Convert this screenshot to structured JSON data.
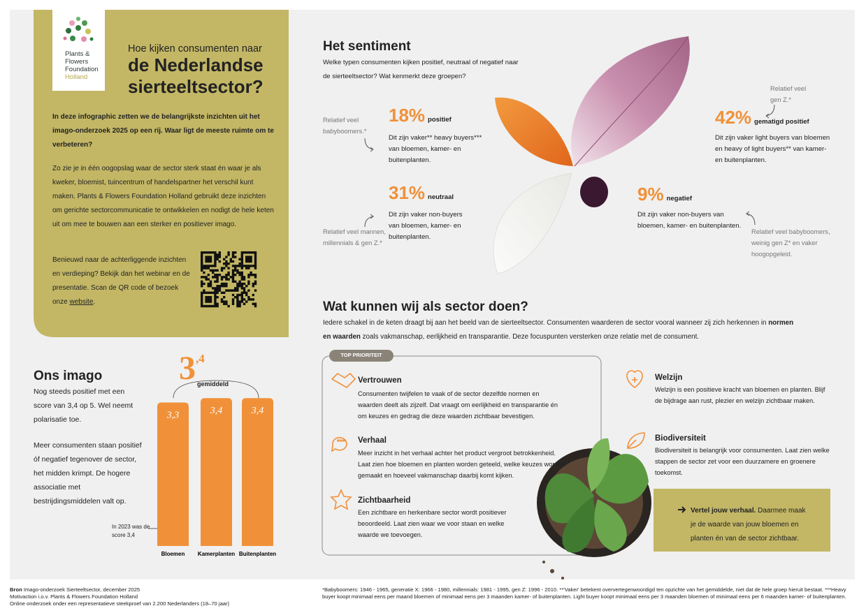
{
  "logo": {
    "lines": [
      "Plants &",
      "Flowers",
      "Foundation",
      "Holland"
    ]
  },
  "header": {
    "kicker": "Hoe kijken consumenten naar",
    "title": "de Nederlandse sierteeltsector?"
  },
  "intro": {
    "paragraphs": [
      "In deze infographic zetten we de belangrijkste inzichten uit het imago-onderzoek 2025 op een rij. Waar ligt de meeste ruimte om te verbeteren?",
      "Zo zie je in één oogopslag waar de sector sterk staat én waar je als kweker, bloemist, tuincentrum of handelspartner het verschil kunt maken. Plants & Flowers Foundation Holland gebruikt deze inzichten om gerichte sectorcommunicatie te ontwikkelen en nodigt de hele keten uit om mee te bouwen aan een sterker en positiever imago."
    ],
    "qr_text": "Benieuwd naar de achterliggende inzichten en verdieping? Bekijk dan het webinar en de presentatie. Scan de QR code of bezoek onze ",
    "link": "website",
    "period": "."
  },
  "imago": {
    "title": "Ons imago",
    "paragraphs": [
      "Nog steeds positief met een score van 3,4 op 5. Wel neemt polarisatie toe.",
      "Meer consumenten staan positief óf negatief tegenover de sector, het midden krimpt. De hogere associatie met bestrijdingsmiddelen valt op."
    ],
    "average_integer": "3",
    "average_decimal": ",4",
    "average_label": "gemiddeld",
    "annotation": "In 2023 was de score 3,4"
  },
  "chart_data": {
    "type": "bar",
    "categories": [
      "Bloemen",
      "Kamerplanten",
      "Buitenplanten"
    ],
    "values": [
      3.3,
      3.4,
      3.4
    ],
    "value_labels": [
      "3,3",
      "3,4",
      "3,4"
    ],
    "color": "#f0913a",
    "ylim": [
      0,
      3.5
    ]
  },
  "sentiment": {
    "title": "Het sentiment",
    "subtitle": "Welke typen consumenten kijken positief, neutraal of negatief naar de sierteeltsector? Wat kenmerkt deze groepen?",
    "groups": [
      {
        "percent": "18%",
        "label": "positief",
        "text": "Dit zijn vaker** heavy buyers*** van bloemen, kamer- en buitenplanten.",
        "note": "Relatief veel babyboomers.*"
      },
      {
        "percent": "31%",
        "label": "neutraal",
        "text": "Dit zijn vaker non-buyers van bloemen, kamer- en buitenplanten.",
        "note": "Relatief veel mannen, millennials & gen Z.*"
      },
      {
        "percent": "42%",
        "label": "gematigd positief",
        "text": "Dit zijn vaker light buyers van bloemen en heavy of light buyers** van kamer- en buitenplanten.",
        "note": "Relatief veel gen Z.*"
      },
      {
        "percent": "9%",
        "label": "negatief",
        "text": "Dit zijn vaker non-buyers van bloemen, kamer- en buitenplanten.",
        "note": "Relatief veel babyboomers, weinig gen Z* en vaker hoogopgeleid."
      }
    ]
  },
  "actions": {
    "title": "Wat kunnen wij als sector doen?",
    "intro_before": "Iedere schakel in de keten draagt bij aan het beeld van de sierteeltsector. Consumenten waarderen de sector vooral wanneer zij zich herkennen in ",
    "intro_bold": "normen en waarden",
    "intro_after": " zoals vakmanschap, eerlijkheid en transparantie. Deze focuspunten versterken onze relatie met de consument.",
    "priority_tag": "TOP PRIORITEIT",
    "priority": [
      {
        "title": "Vertrouwen",
        "text": "Consumenten twijfelen te vaak of de sector dezelfde normen en waarden deelt als zijzelf. Dat vraagt om eerlijkheid en transparantie én om keuzes en gedrag die deze waarden zichtbaar bevestigen."
      },
      {
        "title": "Verhaal",
        "text": "Meer inzicht in het verhaal achter het product vergroot betrokkenheid. Laat zien hoe bloemen en planten worden geteeld, welke keuzes worden gemaakt en hoeveel vakmanschap daarbij komt kijken."
      },
      {
        "title": "Zichtbaarheid",
        "text": "Een zichtbare en herkenbare sector wordt positiever beoordeeld. Laat zien waar we voor staan en welke waarde we toevoegen."
      }
    ],
    "other": [
      {
        "title": "Welzijn",
        "text": "Welzijn is een positieve kracht van bloemen en planten. Blijf de bijdrage aan rust, plezier en welzijn zichtbaar maken."
      },
      {
        "title": "Biodiversiteit",
        "text": "Biodiversiteit is belangrijk voor consumenten. Laat zien welke stappen de sector zet voor een duurzamere en groenere toekomst."
      }
    ],
    "cta_bold": "Vertel jouw verhaal.",
    "cta_text": " Daarmee maak je de waarde van jouw bloemen en planten én van de sector zichtbaar."
  },
  "footer": {
    "source_label": "Bron",
    "source_lines": [
      " Imago-onderzoek Sierteeltsector, december 2025",
      "Motivaction i.o.v. Plants & Flowers Foundation Holland",
      "Online onderzoek onder een representatieve steekproef van 2.200 Nederlanders (18–70 jaar)"
    ],
    "notes": "*Babyboomers: 1946 - 1965, generatie X: 1966 - 1980, millennials: 1981 - 1995, gen Z: 1996 - 2010. **'Vaker' betekent oververtegenwoordigd ten opzichte van het gemiddelde, niet dat de hele groep hieruit bestaat. ***Heavy buyer koopt minimaal eens per maand bloemen of minimaal eens per 3 maanden kamer- of buitenplanten. Light buyer koopt minimaal eens per 3 maanden bloemen of minimaal eens per 6 maanden kamer- of buitenplanten."
  }
}
